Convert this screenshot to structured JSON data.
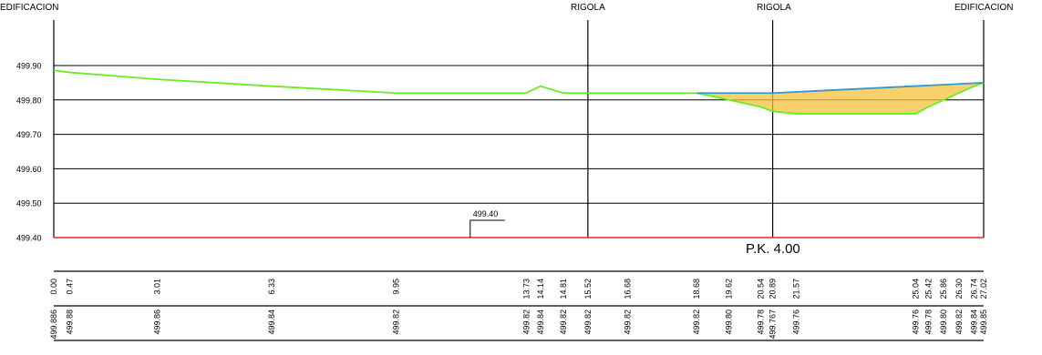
{
  "chart_data": {
    "type": "line",
    "top_labels": {
      "left": "EDIFICACION",
      "rigola_1": "RIGOLA",
      "rigola_2": "RIGOLA",
      "right": "EDIFICACION"
    },
    "rigola_positions": [
      15.52,
      20.89
    ],
    "xlim": [
      0.0,
      27.02
    ],
    "ylim": [
      499.4,
      499.9
    ],
    "y_ticks": [
      "499.90",
      "499.80",
      "499.70",
      "499.60",
      "499.50",
      "499.40"
    ],
    "datum_label": "499.40",
    "datum_marker_x": 12.1,
    "pk_label": "P.K. 4.00",
    "terrain": {
      "x": [
        0.0,
        0.47,
        3.01,
        6.33,
        9.95,
        13.73,
        14.14,
        14.81,
        15.52,
        16.68,
        18.68,
        19.62,
        20.54,
        20.89,
        21.57,
        25.04,
        25.42,
        25.86,
        26.3,
        26.74,
        27.02
      ],
      "y": [
        499.886,
        499.88,
        499.86,
        499.84,
        499.82,
        499.82,
        499.84,
        499.82,
        499.82,
        499.82,
        499.82,
        499.8,
        499.78,
        499.767,
        499.76,
        499.76,
        499.78,
        499.8,
        499.82,
        499.84,
        499.85
      ]
    },
    "project": {
      "x": [
        18.68,
        20.89,
        27.02
      ],
      "y": [
        499.82,
        499.82,
        499.85
      ]
    },
    "distance_labels": [
      "0.00",
      "0.47",
      "3.01",
      "6.33",
      "9.95",
      "13.73",
      "14.14",
      "14.81",
      "15.52",
      "16.68",
      "18.68",
      "19.62",
      "20.54",
      "20.89",
      "21.57",
      "25.04",
      "25.42",
      "25.86",
      "26.30",
      "26.74",
      "27.02"
    ],
    "elevation_labels": [
      "499.886",
      "499.88",
      "499.86",
      "499.84",
      "499.82",
      "499.82",
      "499.84",
      "499.82",
      "499.82",
      "499.82",
      "499.82",
      "499.80",
      "499.78",
      "499.767",
      "499.76",
      "499.76",
      "499.78",
      "499.80",
      "499.82",
      "499.84",
      "499.85"
    ],
    "colors": {
      "terrain": "#66ee22",
      "project": "#3399cc",
      "fill": "#f5c23c",
      "datum": "#ee2222",
      "grid": "#000000"
    }
  }
}
